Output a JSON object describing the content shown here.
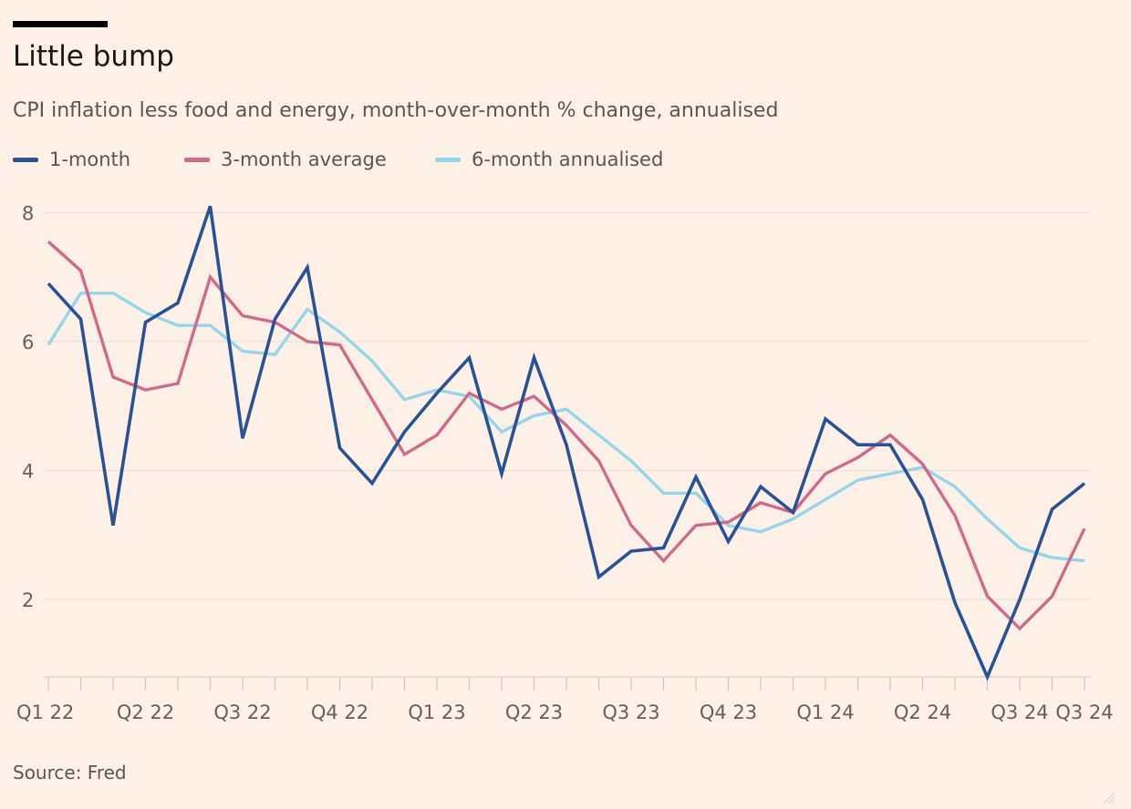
{
  "header": {
    "title": "Little bump",
    "subtitle": "CPI inflation less food and energy, month-over-month % change, annualised"
  },
  "footer": {
    "source": "Source: Fred"
  },
  "colors": {
    "background": "#fdf1e7",
    "grid": "#e9ddd3",
    "axis": "#cfc5bc",
    "tick_text": "#66605c",
    "one_month": "#2b5394",
    "three_month": "#d1698a",
    "six_month": "#96d6e8"
  },
  "chart_data": {
    "type": "line",
    "title": "Little bump",
    "subtitle": "CPI inflation less food and energy, month-over-month % change, annualised",
    "xlabel": "",
    "ylabel": "",
    "x": [
      "2022-01",
      "2022-02",
      "2022-03",
      "2022-04",
      "2022-05",
      "2022-06",
      "2022-07",
      "2022-08",
      "2022-09",
      "2022-10",
      "2022-11",
      "2022-12",
      "2023-01",
      "2023-02",
      "2023-03",
      "2023-04",
      "2023-05",
      "2023-06",
      "2023-07",
      "2023-08",
      "2023-09",
      "2023-10",
      "2023-11",
      "2023-12",
      "2024-01",
      "2024-02",
      "2024-03",
      "2024-04",
      "2024-05",
      "2024-06",
      "2024-07",
      "2024-08",
      "2024-09"
    ],
    "ylim": [
      0.8,
      8.2
    ],
    "yticks": [
      2,
      4,
      6,
      8
    ],
    "xticks": [
      {
        "at": "2022-01",
        "label": "Q1 22"
      },
      {
        "at": "2022-04",
        "label": "Q2 22"
      },
      {
        "at": "2022-07",
        "label": "Q3 22"
      },
      {
        "at": "2022-10",
        "label": "Q4 22"
      },
      {
        "at": "2023-01",
        "label": "Q1 23"
      },
      {
        "at": "2023-04",
        "label": "Q2 23"
      },
      {
        "at": "2023-07",
        "label": "Q3 23"
      },
      {
        "at": "2023-10",
        "label": "Q4 23"
      },
      {
        "at": "2024-01",
        "label": "Q1 24"
      },
      {
        "at": "2024-04",
        "label": "Q2 24"
      },
      {
        "at": "2024-07",
        "label": "Q3 24"
      },
      {
        "at": "2024-09",
        "label": "Q3 24"
      }
    ],
    "grid": true,
    "legend_position": "top-left",
    "series": [
      {
        "name": "1-month",
        "color": "#2b5394",
        "values": [
          6.9,
          6.35,
          3.15,
          6.3,
          6.6,
          8.1,
          4.5,
          6.35,
          7.15,
          4.35,
          3.8,
          4.6,
          5.2,
          5.75,
          3.95,
          5.75,
          4.4,
          2.35,
          2.75,
          2.8,
          3.9,
          2.9,
          3.75,
          3.35,
          4.8,
          4.4,
          4.4,
          3.55,
          1.95,
          0.8,
          2.0,
          3.4,
          3.8
        ]
      },
      {
        "name": "3-month average",
        "color": "#d1698a",
        "values": [
          7.55,
          7.1,
          5.45,
          5.25,
          5.35,
          7.0,
          6.4,
          6.3,
          6.0,
          5.95,
          5.1,
          4.25,
          4.55,
          5.2,
          4.95,
          5.15,
          4.7,
          4.15,
          3.15,
          2.6,
          3.15,
          3.2,
          3.5,
          3.35,
          3.95,
          4.2,
          4.55,
          4.1,
          3.3,
          2.05,
          1.55,
          2.05,
          3.1
        ]
      },
      {
        "name": "6-month annualised",
        "color": "#96d6e8",
        "values": [
          5.95,
          6.75,
          6.75,
          6.45,
          6.25,
          6.25,
          5.85,
          5.8,
          6.5,
          6.15,
          5.7,
          5.1,
          5.25,
          5.15,
          4.6,
          4.85,
          4.95,
          4.55,
          4.15,
          3.65,
          3.65,
          3.15,
          3.05,
          3.25,
          3.55,
          3.85,
          3.95,
          4.05,
          3.75,
          3.25,
          2.8,
          2.65,
          2.6
        ]
      }
    ]
  }
}
